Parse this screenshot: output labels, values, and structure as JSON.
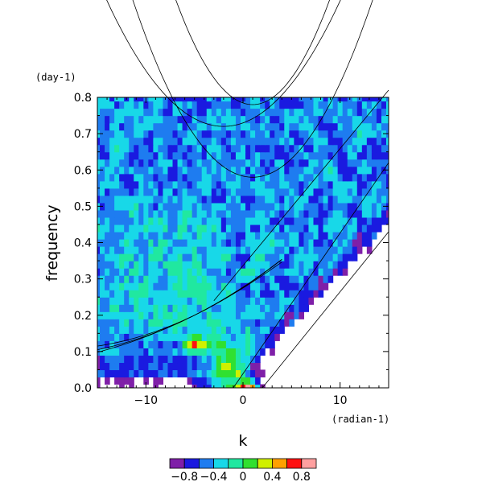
{
  "chart_data": {
    "type": "heatmap",
    "title": "",
    "xlabel": "k",
    "ylabel": "frequency",
    "x_unit": "(radian-1)",
    "y_unit": "(day-1)",
    "xlim": [
      -15,
      15
    ],
    "ylim": [
      0,
      0.8
    ],
    "x_ticks": [
      -10,
      0,
      10
    ],
    "x_tick_labels": [
      "−10",
      "0",
      "10"
    ],
    "y_ticks": [
      0.0,
      0.1,
      0.2,
      0.3,
      0.4,
      0.5,
      0.6,
      0.7,
      0.8
    ],
    "y_tick_labels": [
      "0.0",
      "0.1",
      "0.2",
      "0.3",
      "0.4",
      "0.5",
      "0.6",
      "0.7",
      "0.8"
    ],
    "colorbar": {
      "levels": [
        -1.0,
        -0.8,
        -0.6,
        -0.4,
        -0.2,
        0.0,
        0.2,
        0.4,
        0.6,
        0.8,
        1.0
      ],
      "colors": [
        "#7f1fa8",
        "#1a1ae0",
        "#1e7cf0",
        "#18d8e8",
        "#20e8a0",
        "#30e030",
        "#d0f000",
        "#ffa000",
        "#ff1010",
        "#ffa0a0"
      ],
      "labels": [
        "−0.8",
        "−0.4",
        "0",
        "0.4",
        "0.8"
      ],
      "label_values": [
        -0.8,
        -0.4,
        0.0,
        0.4,
        0.8
      ]
    },
    "grid": false,
    "colors": {
      "axes": "#000000",
      "background": "#ffffff",
      "curves": "#000000"
    }
  }
}
